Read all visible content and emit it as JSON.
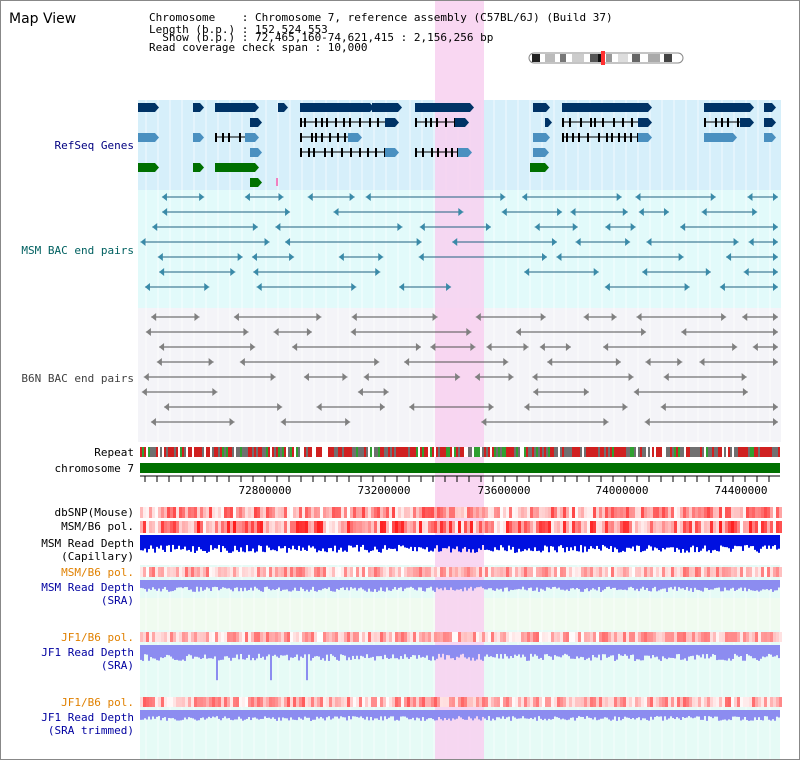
{
  "app": {
    "title": "Map View"
  },
  "info": {
    "lines": [
      "Chromosome    : Chromosome 7, reference assembly (C57BL/6J) (Build 37)",
      "Length (b.p.) : 152,524,553",
      "  Show (b.p.) : 72,465,160-74,621,415 : 2,156,256 bp",
      "Read coverage check span : 10,000"
    ]
  },
  "tracks": {
    "refseq": {
      "label": "RefSeq Genes",
      "color": "#000080"
    },
    "msm_bac": {
      "label": "MSM BAC end pairs",
      "color": "#006060"
    },
    "b6n_bac": {
      "label": "B6N BAC end pairs",
      "color": "#404040"
    },
    "repeat": {
      "label": "Repeat"
    },
    "chromosome": {
      "label": "chromosome 7"
    },
    "dbsnp": {
      "label": "dbSNP(Mouse)"
    },
    "msm_b6_pol": {
      "label": "MSM/B6 pol."
    },
    "msm_read_depth_cap": {
      "line1": "MSM Read Depth",
      "line2": "(Capillary)"
    },
    "msm_b6_pol_sra": {
      "label": "MSM/B6 pol.",
      "color": "#e08000"
    },
    "msm_read_depth_sra": {
      "line1": "MSM Read Depth",
      "line2": "(SRA)",
      "color": "#0000a0"
    },
    "jf1_b6_pol": {
      "label": "JF1/B6 pol.",
      "color": "#e08000"
    },
    "jf1_read_depth_sra": {
      "line1": "JF1 Read Depth",
      "line2": "(SRA)",
      "color": "#0000a0"
    },
    "jf1_b6_pol_trim": {
      "label": "JF1/B6 pol.",
      "color": "#e08000"
    },
    "jf1_read_depth_trim": {
      "line1": "JF1 Read Depth",
      "line2": "(SRA trimmed)",
      "color": "#0000a0"
    }
  },
  "axis": {
    "ticks": [
      "72800000",
      "73200000",
      "73600000",
      "74000000",
      "74400000"
    ]
  },
  "colors": {
    "highlight": "#f8d0f0",
    "gene_dark": "#003366",
    "gene_mid": "#4a90c0",
    "gene_green": "#007000",
    "chromosome_bar": "#007000",
    "depth_blue": "#0010e0",
    "depth_lav": "#8c8cf0",
    "snp_red": "#f04040"
  }
}
